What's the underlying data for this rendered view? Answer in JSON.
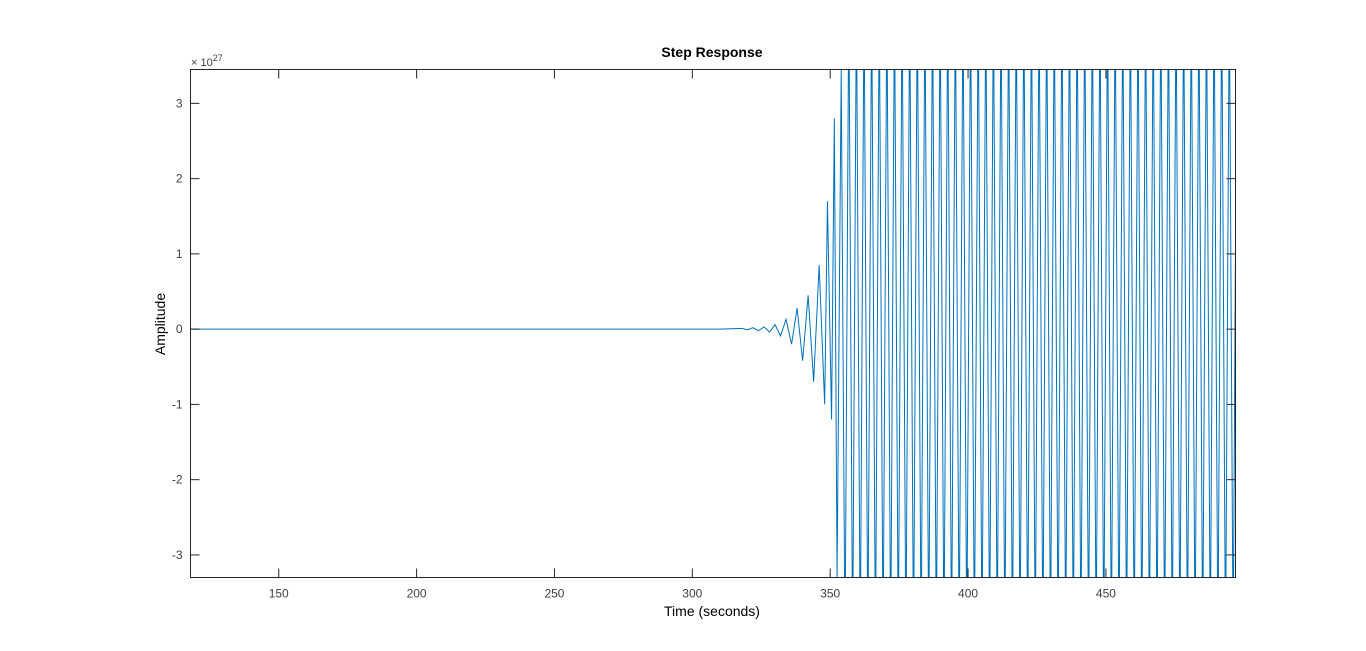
{
  "chart_data": {
    "type": "line",
    "title": "Step Response",
    "xlabel": "Time (seconds)",
    "ylabel": "Amplitude",
    "xlim": [
      118,
      497
    ],
    "ylim": [
      -3.3,
      3.45
    ],
    "y_exponent_base": "× 10",
    "y_exponent_power": "27",
    "xticks": [
      150,
      200,
      250,
      300,
      350,
      400,
      450
    ],
    "xtick_labels": [
      "150",
      "200",
      "250",
      "300",
      "350",
      "400",
      "450"
    ],
    "yticks": [
      -3,
      -2,
      -1,
      0,
      1,
      2,
      3
    ],
    "ytick_labels": [
      "-3",
      "-2",
      "-1",
      "0",
      "1",
      "2",
      "3"
    ],
    "grid": false,
    "series": [
      {
        "color": "#0072bd",
        "oscillation_period": 2.76,
        "points": [
          [
            118,
            0
          ],
          [
            300,
            0
          ],
          [
            310,
            0
          ],
          [
            318,
            0.01
          ],
          [
            320,
            -0.01
          ],
          [
            322,
            0.02
          ],
          [
            324,
            -0.02
          ],
          [
            326,
            0.03
          ],
          [
            328,
            -0.04
          ],
          [
            330,
            0.06
          ],
          [
            332,
            -0.09
          ],
          [
            334,
            0.13
          ],
          [
            336,
            -0.2
          ],
          [
            338,
            0.28
          ],
          [
            340,
            -0.42
          ],
          [
            342,
            0.45
          ],
          [
            344,
            -0.7
          ],
          [
            346,
            0.85
          ],
          [
            348,
            -1.0
          ],
          [
            349,
            1.7
          ],
          [
            350.5,
            -1.2
          ],
          [
            351.5,
            2.8
          ],
          [
            352.5,
            -3.3
          ],
          [
            354,
            3.45
          ]
        ]
      }
    ]
  }
}
